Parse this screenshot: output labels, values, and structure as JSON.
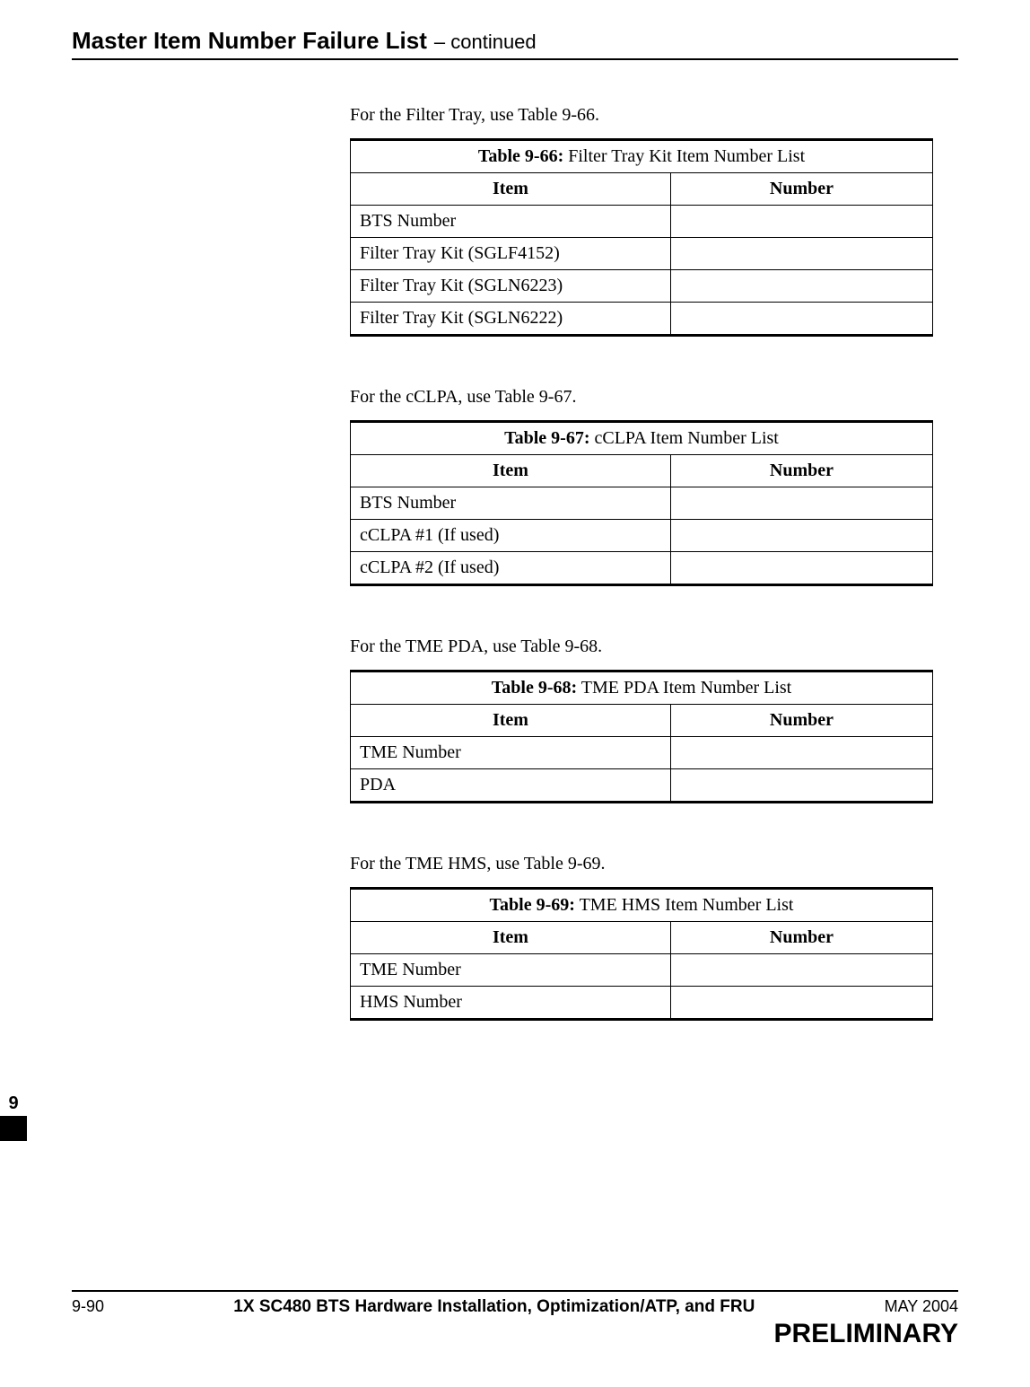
{
  "colors": {
    "text": "#000000",
    "background": "#ffffff",
    "rule": "#000000"
  },
  "header": {
    "title": "Master Item Number Failure List",
    "suffix": "– continued"
  },
  "sideTab": {
    "chapter": "9"
  },
  "sections": [
    {
      "lead": "For the Filter Tray, use Table 9-66.",
      "captionBold": "Table 9-66:",
      "captionRest": " Filter Tray Kit Item Number List",
      "col1": "Item",
      "col2": "Number",
      "rows": [
        {
          "item": "BTS Number",
          "number": ""
        },
        {
          "item": "Filter Tray Kit (SGLF4152)",
          "number": ""
        },
        {
          "item": "Filter Tray Kit (SGLN6223)",
          "number": ""
        },
        {
          "item": "Filter Tray Kit (SGLN6222)",
          "number": ""
        }
      ]
    },
    {
      "lead": "For the cCLPA, use Table 9-67.",
      "captionBold": "Table 9-67:",
      "captionRest": " cCLPA Item Number List",
      "col1": "Item",
      "col2": "Number",
      "rows": [
        {
          "item": "BTS Number",
          "number": ""
        },
        {
          "item": "cCLPA #1 (If used)",
          "number": ""
        },
        {
          "item": "cCLPA #2 (If used)",
          "number": ""
        }
      ]
    },
    {
      "lead": "For the TME PDA, use Table 9-68.",
      "captionBold": "Table 9-68:",
      "captionRest": " TME PDA Item Number List",
      "col1": "Item",
      "col2": "Number",
      "rows": [
        {
          "item": "TME Number",
          "number": ""
        },
        {
          "item": "PDA",
          "number": ""
        }
      ]
    },
    {
      "lead": "For the TME HMS, use Table 9-69.",
      "captionBold": "Table 9-69:",
      "captionRest": " TME HMS Item Number List",
      "col1": "Item",
      "col2": "Number",
      "rows": [
        {
          "item": "TME Number",
          "number": ""
        },
        {
          "item": "HMS Number",
          "number": ""
        }
      ]
    }
  ],
  "footer": {
    "pageNumber": "9-90",
    "docTitle": "1X SC480 BTS Hardware Installation, Optimization/ATP, and FRU",
    "date": "MAY 2004",
    "status": "PRELIMINARY"
  }
}
